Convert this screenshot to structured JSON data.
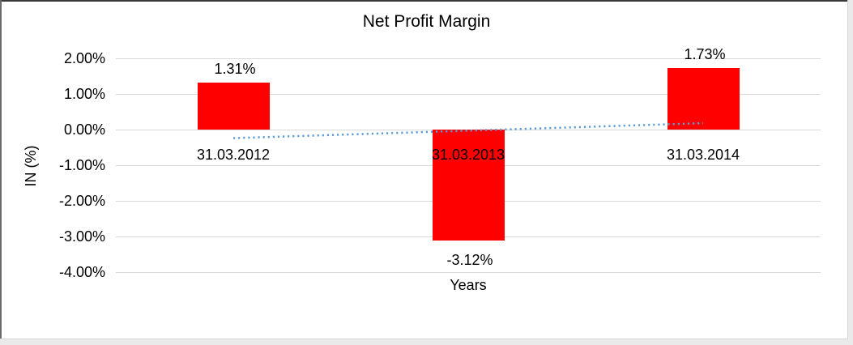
{
  "chart_data": {
    "type": "bar",
    "title": "Net Profit Margin",
    "xlabel": "Years",
    "ylabel": "IN (%)",
    "categories": [
      "31.03.2012",
      "31.03.2013",
      "31.03.2014"
    ],
    "values": [
      1.31,
      -3.12,
      1.73
    ],
    "data_labels": [
      "1.31%",
      "-3.12%",
      "1.73%"
    ],
    "ylim": [
      -4,
      2
    ],
    "yticks": [
      2,
      1,
      0,
      -1,
      -2,
      -3,
      -4
    ],
    "ytick_labels": [
      "2.00%",
      "1.00%",
      "0.00%",
      "-1.00%",
      "-2.00%",
      "-3.00%",
      "-4.00%"
    ],
    "grid": true,
    "legend": "none",
    "bar_color": "#FF0000",
    "gridline_color": "#D9D9D9",
    "text_color": "#000000",
    "trendline": {
      "type": "linear",
      "style": "dotted",
      "color": "#5B9BD5",
      "start_value": -0.24,
      "end_value": 0.18
    }
  }
}
